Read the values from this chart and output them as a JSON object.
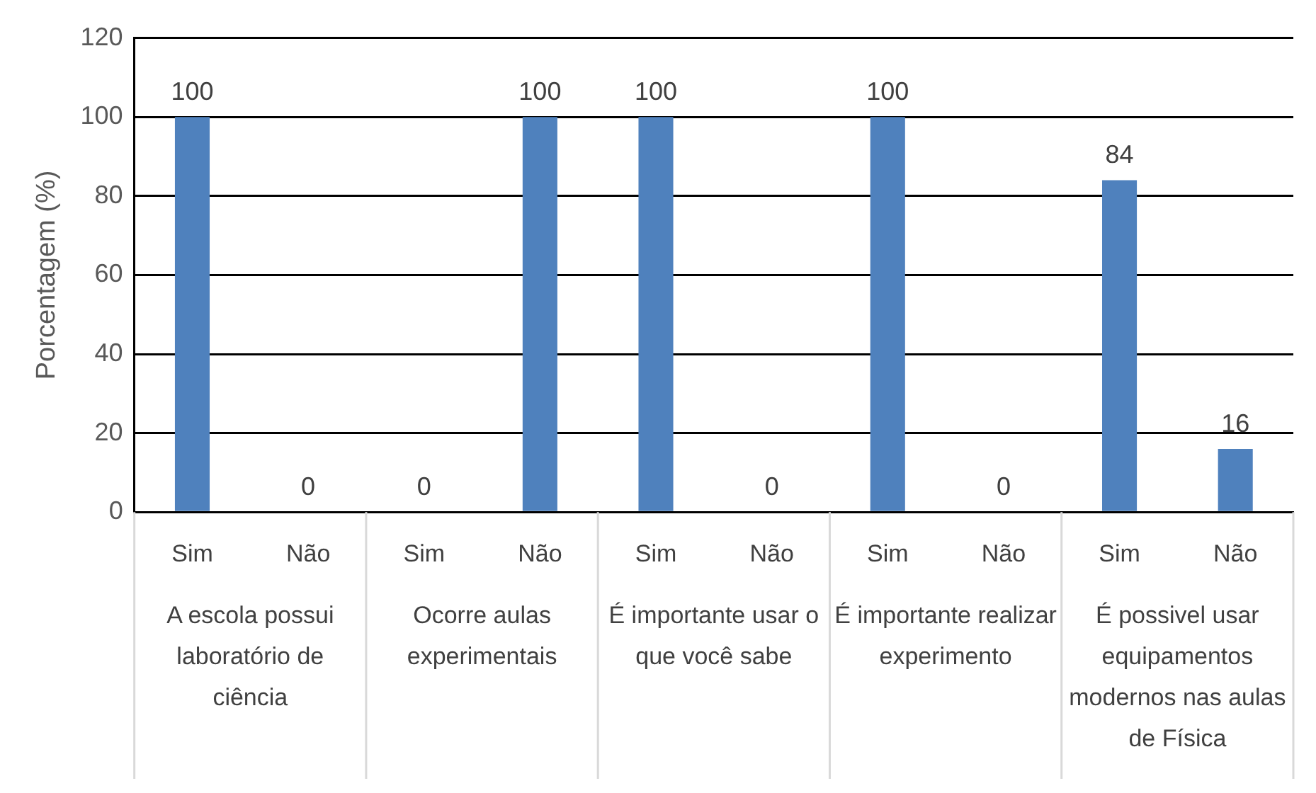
{
  "chart_data": {
    "type": "bar",
    "ylabel": "Porcentagem (%)",
    "categories": [
      "Sim",
      "Não",
      "Sim",
      "Não",
      "Sim",
      "Não",
      "Sim",
      "Não",
      "Sim",
      "Não"
    ],
    "values": [
      100,
      0,
      0,
      100,
      100,
      0,
      100,
      0,
      84,
      16
    ],
    "color": "#4f81bd",
    "ylim": [
      0,
      120
    ],
    "yticks": [
      0,
      20,
      40,
      60,
      80,
      100,
      120
    ],
    "grid": "y",
    "legend": false,
    "data_labels": true,
    "annotations": [
      "A escola possui laboratório de ciência",
      "Ocorre aulas experimentais",
      "É importante usar o que você sabe",
      "É importante realizar experimento",
      "É possivel usar equipamentos modernos nas aulas de Física"
    ]
  }
}
